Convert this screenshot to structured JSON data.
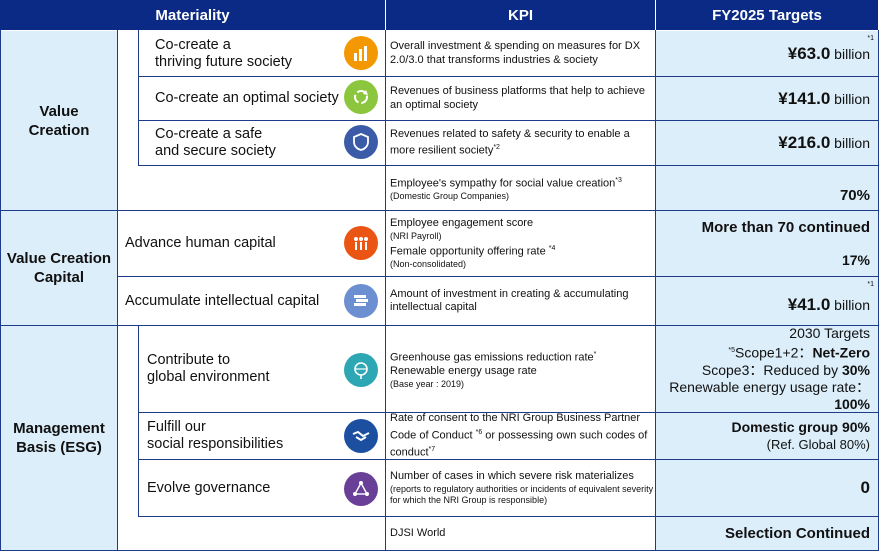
{
  "header": {
    "materiality": "Materiality",
    "kpi": "KPI",
    "targets": "FY2025 Targets"
  },
  "groups": {
    "value_creation": "Value\nCreation",
    "capital": "Value Creation\nCapital",
    "esg": "Management\nBasis (ESG)"
  },
  "rows": {
    "r1": {
      "materiality": "Co-create a\nthriving future society",
      "kpi": "Overall investment & spending on measures for DX 2.0/3.0 that transforms industries & society",
      "value": "¥63.0",
      "unit": " billion",
      "note": "*1"
    },
    "r2": {
      "materiality": "Co-create an optimal society",
      "kpi": "Revenues of business platforms that help to achieve an optimal society",
      "value": "¥141.0",
      "unit": " billion"
    },
    "r3": {
      "materiality": "Co-create a safe\nand secure society",
      "kpi": "Revenues related to safety & security to enable a more resilient society",
      "kpi_note": "*2",
      "value": "¥216.0",
      "unit": " billion"
    },
    "r4": {
      "kpi": "Employee's sympathy for social value creation",
      "kpi_note": "*3",
      "kpi_sub": "(Domestic Group Companies)",
      "value": "70%"
    },
    "r5": {
      "materiality": "Advance human capital",
      "kpi1": "Employee engagement score",
      "kpi1_sub": "(NRI Payroll)",
      "kpi2": "Female opportunity offering rate ",
      "kpi2_note": "*4",
      "kpi2_sub": "(Non-consolidated)",
      "value1": "More than 70 continued",
      "value2": "17%"
    },
    "r6": {
      "materiality": "Accumulate intellectual capital",
      "kpi": "Amount of investment in creating & accumulating intellectual capital",
      "value": "¥41.0",
      "unit": " billion",
      "note": "*1"
    },
    "r7": {
      "materiality": "Contribute to\nglobal environment",
      "kpi": "Greenhouse gas emissions reduction rate",
      "kpi_note": "*",
      "kpi2": "Renewable energy usage rate",
      "kpi_sub": "(Base year : 2019)",
      "t_head": "2030 Targets",
      "t_note": "*5",
      "t_l1a": "Scope1+2：",
      "t_l1b": "Net-Zero",
      "t_l2a": "Scope3：Reduced by ",
      "t_l2b": "30%",
      "t_l3": "Renewable energy usage rate：",
      "t_l4": "100%"
    },
    "r8": {
      "materiality": "Fulfill our\nsocial responsibilities",
      "kpi": "Rate of consent to the NRI Group Business Partner Code of Conduct ",
      "kpi_note": "*6",
      "kpi_rest": " or possessing own such codes of conduct",
      "kpi_note2": "*7",
      "value": "Domestic group 90%",
      "value_sub": "(Ref. Global 80%)"
    },
    "r9": {
      "materiality": "Evolve governance",
      "kpi": "Number of cases in which severe risk materializes ",
      "kpi_sub": "(reports to regulatory authorities or incidents of equivalent severity for which the NRI Group is responsible)",
      "value": "0"
    },
    "r10": {
      "kpi": "DJSI World",
      "value": "Selection Continued"
    }
  },
  "icon_colors": {
    "r1": "#f39800",
    "r2": "#8cc63f",
    "r3": "#3b5ba9",
    "r5": "#ea5514",
    "r6": "#6b8fd0",
    "r7": "#2ea7b5",
    "r8": "#1d4fa0",
    "r9": "#6a3f98"
  }
}
